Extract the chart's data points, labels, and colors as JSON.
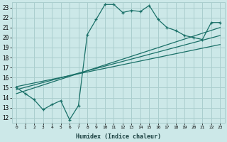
{
  "xlabel": "Humidex (Indice chaleur)",
  "xlim": [
    -0.5,
    23.5
  ],
  "ylim": [
    11.5,
    23.5
  ],
  "xticks": [
    0,
    1,
    2,
    3,
    4,
    5,
    6,
    7,
    8,
    9,
    10,
    11,
    12,
    13,
    14,
    15,
    16,
    17,
    18,
    19,
    20,
    21,
    22,
    23
  ],
  "yticks": [
    12,
    13,
    14,
    15,
    16,
    17,
    18,
    19,
    20,
    21,
    22,
    23
  ],
  "bg_color": "#cce8e8",
  "grid_color": "#aacece",
  "line_color": "#1a7068",
  "line1_x": [
    0,
    1,
    2,
    3,
    4,
    5,
    6,
    7,
    8,
    9,
    10,
    11,
    12,
    13,
    14,
    15,
    16,
    17,
    18,
    19,
    20,
    21,
    22,
    23
  ],
  "line1_y": [
    15.0,
    14.4,
    13.8,
    12.8,
    13.3,
    13.7,
    11.8,
    13.2,
    20.3,
    21.8,
    23.3,
    23.3,
    22.5,
    22.7,
    22.6,
    23.2,
    21.8,
    21.0,
    20.7,
    20.2,
    20.0,
    19.8,
    21.5,
    21.5
  ],
  "line2_x": [
    0,
    23
  ],
  "line2_y": [
    14.8,
    20.2
  ],
  "line3_x": [
    0,
    23
  ],
  "line3_y": [
    14.4,
    21.0
  ],
  "line4_x": [
    0,
    23
  ],
  "line4_y": [
    15.1,
    19.3
  ]
}
